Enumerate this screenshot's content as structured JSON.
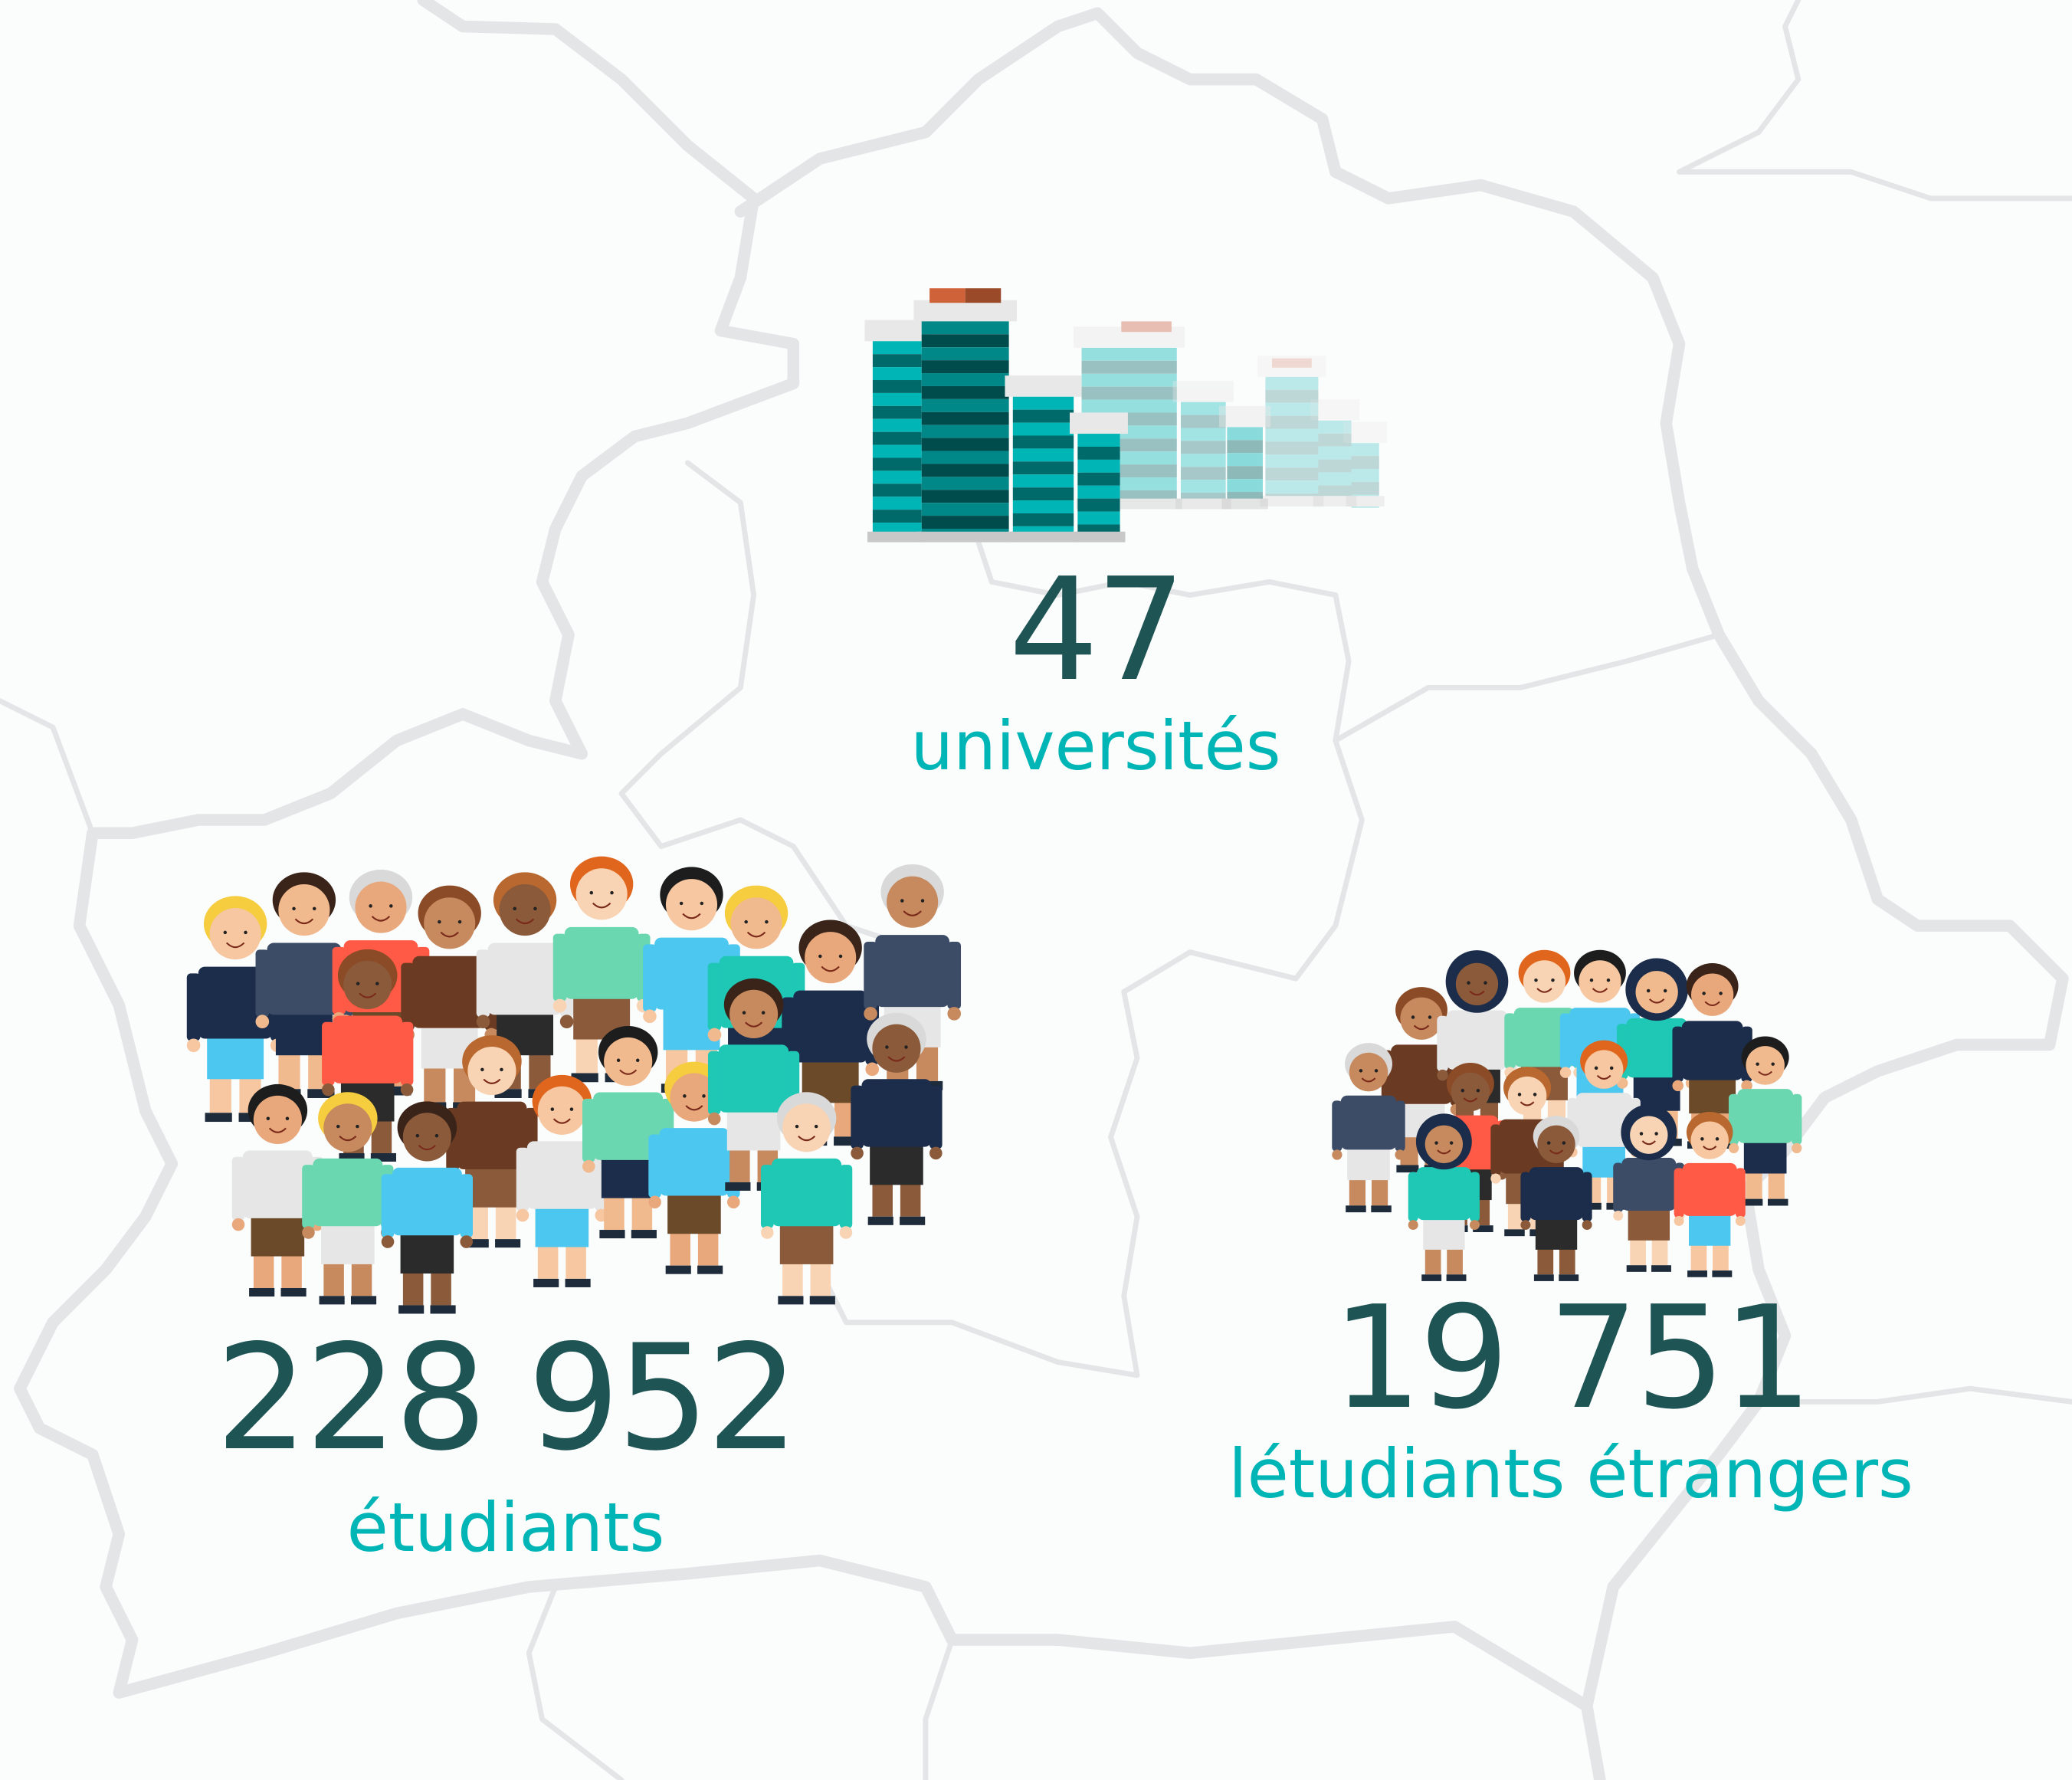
{
  "colors": {
    "background": "#fbfcfc",
    "map_lines": "#e4e5e7",
    "number": "#1e5454",
    "label": "#00b5b5"
  },
  "stats": [
    {
      "value": "47",
      "label": "universités",
      "icon": "buildings-icon"
    },
    {
      "value": "228 952",
      "label": "étudiants",
      "icon": "students-crowd-icon"
    },
    {
      "value": "19 751",
      "label": "létudiants étrangers",
      "icon": "foreign-students-crowd-icon"
    }
  ]
}
